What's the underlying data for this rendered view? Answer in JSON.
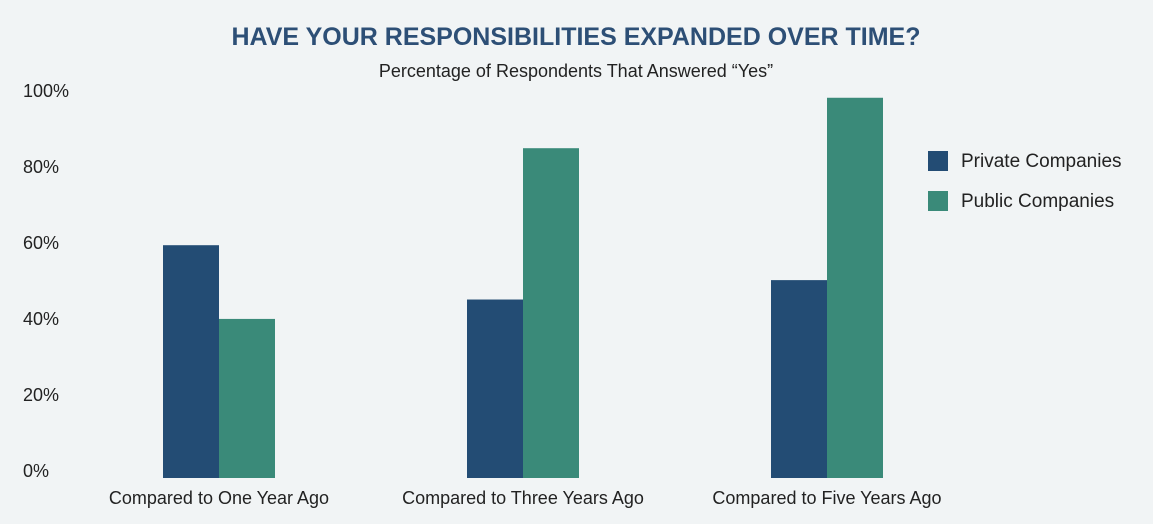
{
  "chart_data": {
    "type": "bar",
    "title": "HAVE YOUR RESPONSIBILITIES EXPANDED OVER TIME?",
    "subtitle": "Percentage of Respondents That Answered “Yes”",
    "categories": [
      "Compared to One Year Ago",
      "Compared to Three Years Ago",
      "Compared to Five Years Ago"
    ],
    "series": [
      {
        "name": "Private Companies",
        "values": [
          60,
          46,
          51
        ]
      },
      {
        "name": "Public Companies",
        "values": [
          41,
          85,
          98
        ]
      }
    ],
    "ylim": [
      0,
      100
    ],
    "yticks": [
      "0%",
      "20%",
      "40%",
      "60%",
      "80%",
      "100%"
    ],
    "grid": false,
    "legend_position": "right",
    "colors": {
      "title": "#2d4f76",
      "private": "#234c74",
      "public": "#3a8a79",
      "background": "#f1f4f5"
    }
  }
}
